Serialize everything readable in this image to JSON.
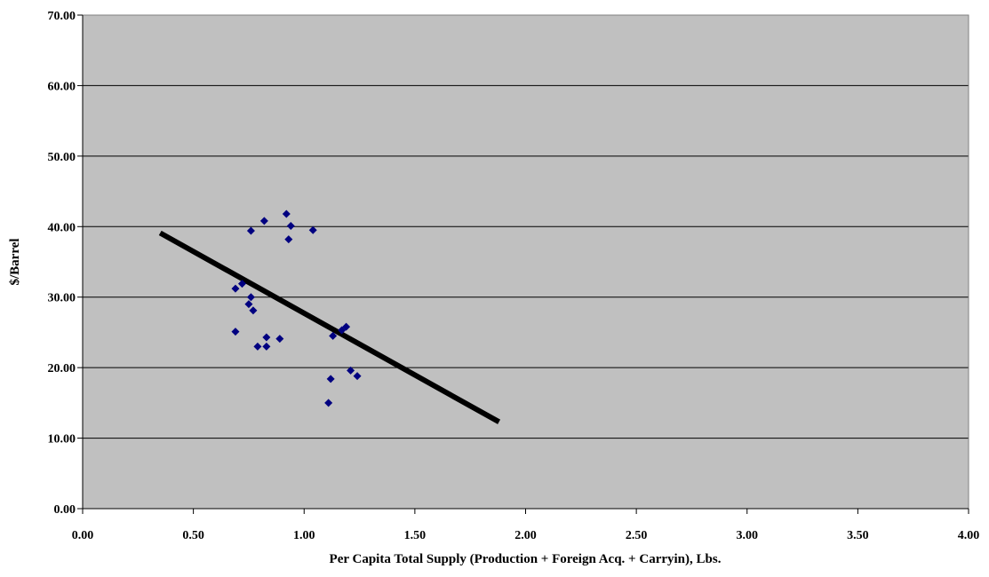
{
  "chart_data": {
    "type": "scatter",
    "title": "",
    "xlabel": "Per Capita Total Supply (Production + Foreign Acq. + Carryin), Lbs.",
    "ylabel": "$/Barrel",
    "xlim": [
      0,
      4
    ],
    "ylim": [
      0,
      70
    ],
    "x_ticks": [
      "0.00",
      "0.50",
      "1.00",
      "1.50",
      "2.00",
      "2.50",
      "3.00",
      "3.50",
      "4.00"
    ],
    "y_ticks": [
      "0.00",
      "10.00",
      "20.00",
      "30.00",
      "40.00",
      "50.00",
      "60.00",
      "70.00"
    ],
    "grid": "horizontal",
    "legend": "none",
    "colors": {
      "plot_background": "#c0c0c0",
      "marker": "#000080",
      "trendline": "#000000",
      "gridline": "#000000"
    },
    "series": [
      {
        "marker": "diamond",
        "points": [
          {
            "x": 0.69,
            "y": 31.2
          },
          {
            "x": 0.72,
            "y": 31.9
          },
          {
            "x": 0.75,
            "y": 29.0
          },
          {
            "x": 0.76,
            "y": 30.0
          },
          {
            "x": 0.77,
            "y": 28.1
          },
          {
            "x": 0.69,
            "y": 25.1
          },
          {
            "x": 0.76,
            "y": 39.4
          },
          {
            "x": 0.79,
            "y": 23.0
          },
          {
            "x": 0.82,
            "y": 40.8
          },
          {
            "x": 0.83,
            "y": 24.3
          },
          {
            "x": 0.83,
            "y": 23.0
          },
          {
            "x": 0.89,
            "y": 24.1
          },
          {
            "x": 0.92,
            "y": 41.8
          },
          {
            "x": 0.93,
            "y": 38.2
          },
          {
            "x": 0.94,
            "y": 40.1
          },
          {
            "x": 1.04,
            "y": 39.5
          },
          {
            "x": 1.11,
            "y": 15.0
          },
          {
            "x": 1.12,
            "y": 18.4
          },
          {
            "x": 1.13,
            "y": 24.5
          },
          {
            "x": 1.17,
            "y": 25.3
          },
          {
            "x": 1.19,
            "y": 25.8
          },
          {
            "x": 1.21,
            "y": 19.6
          },
          {
            "x": 1.24,
            "y": 18.8
          }
        ]
      }
    ],
    "trendline": {
      "x": [
        0.35,
        1.88
      ],
      "y": [
        39.1,
        12.3
      ]
    }
  }
}
